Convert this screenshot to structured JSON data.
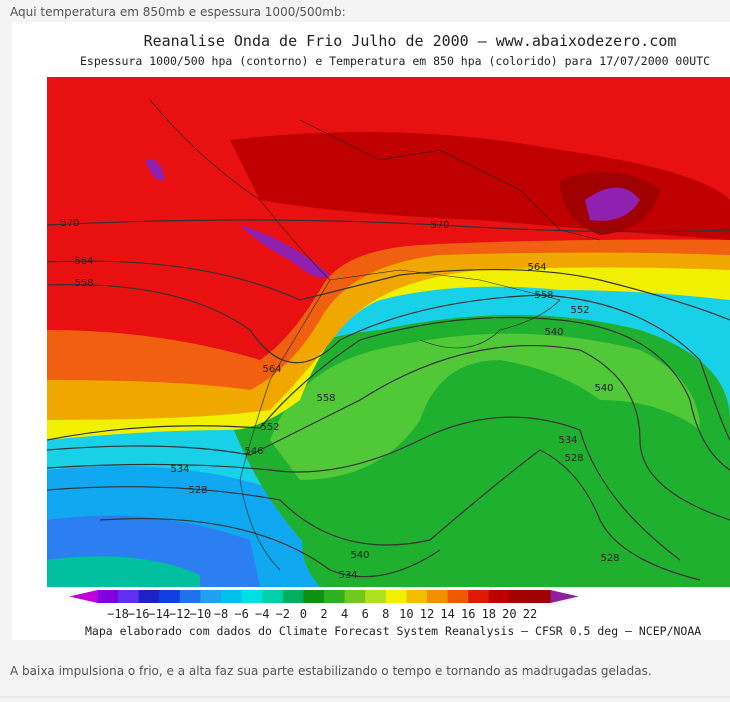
{
  "header": {
    "text": "Aqui temperatura em 850mb e espessura 1000/500mb:"
  },
  "map": {
    "title": "Reanalise Onda de Frio Julho de 2000 — www.abaixodezero.com",
    "subtitle": "Espessura 1000/500 hpa (contorno) e Temperatura em 850 hpa (colorido) para 17/07/2000 00UTC",
    "colorbar_labels": [
      "−18",
      "−16",
      "−14",
      "−12",
      "−10",
      "−8",
      "−6",
      "−4",
      "−2",
      "0",
      "2",
      "4",
      "6",
      "8",
      "10",
      "12",
      "14",
      "16",
      "18",
      "20",
      "22"
    ],
    "contour_labels": [
      570,
      570,
      564,
      564,
      558,
      558,
      552,
      552,
      546,
      564,
      558,
      540,
      540,
      534,
      528,
      534,
      528,
      540,
      534,
      528
    ],
    "credit": "Mapa elaborado com dados do Climate Forecast System Reanalysis – CFSR 0.5 deg – NCEP/NOAA"
  },
  "caption": {
    "text": "A baixa impulsiona o frio, e a alta faz sua parte estabilizando o tempo e tornando as madrugadas geladas."
  }
}
